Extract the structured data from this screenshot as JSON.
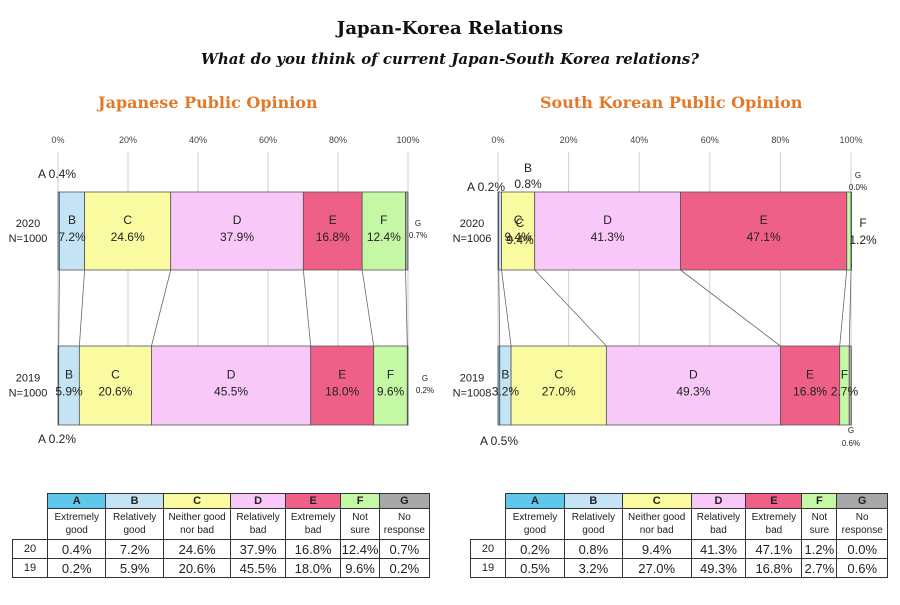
{
  "header": {
    "title": "Japan-Korea Relations",
    "subtitle": "What do you think of current Japan-South Korea relations?"
  },
  "colors": {
    "A": "#5ec8ec",
    "B": "#c4e4f6",
    "C": "#fafaa0",
    "D": "#f8c8f8",
    "E": "#ee6088",
    "F": "#c4f8a4",
    "G": "#a8a8a8"
  },
  "legend": {
    "codes": [
      "A",
      "B",
      "C",
      "D",
      "E",
      "F",
      "G"
    ],
    "descriptions": [
      "Extremely good",
      "Relatively good",
      "Neither good nor bad",
      "Relatively bad",
      "Extremely bad",
      "Not sure",
      "No response"
    ]
  },
  "chart_data": [
    {
      "type": "bar",
      "title": "Japanese Public Opinion",
      "xlim": [
        0,
        100
      ],
      "ticks": [
        "0%",
        "20%",
        "40%",
        "60%",
        "80%",
        "100%"
      ],
      "categories": [
        "A",
        "B",
        "C",
        "D",
        "E",
        "F",
        "G"
      ],
      "rows": [
        {
          "label": "2020",
          "n": "N=1000",
          "values": [
            0.4,
            7.2,
            24.6,
            37.9,
            16.8,
            12.4,
            0.7
          ],
          "labels": [
            "0.4%",
            "7.2%",
            "24.6%",
            "37.9%",
            "16.8%",
            "12.4%",
            "0.7%"
          ]
        },
        {
          "label": "2019",
          "n": "N=1000",
          "values": [
            0.2,
            5.9,
            20.6,
            45.5,
            18.0,
            9.6,
            0.2
          ],
          "labels": [
            "0.2%",
            "5.9%",
            "20.6%",
            "45.5%",
            "18.0%",
            "9.6%",
            "0.2%"
          ]
        }
      ],
      "table_years": [
        "20",
        "19"
      ]
    },
    {
      "type": "bar",
      "title": "South Korean Public Opinion",
      "xlim": [
        0,
        100
      ],
      "ticks": [
        "0%",
        "20%",
        "40%",
        "60%",
        "80%",
        "100%"
      ],
      "categories": [
        "A",
        "B",
        "C",
        "D",
        "E",
        "F",
        "G"
      ],
      "rows": [
        {
          "label": "2020",
          "n": "N=1006",
          "values": [
            0.2,
            0.8,
            9.4,
            41.3,
            47.1,
            1.2,
            0.0
          ],
          "labels": [
            "0.2%",
            "0.8%",
            "9.4%",
            "41.3%",
            "47.1%",
            "1.2%",
            "0.0%"
          ]
        },
        {
          "label": "2019",
          "n": "N=1008",
          "values": [
            0.5,
            3.2,
            27.0,
            49.3,
            16.8,
            2.7,
            0.6
          ],
          "labels": [
            "0.5%",
            "3.2%",
            "27.0%",
            "49.3%",
            "16.8%",
            "2.7%",
            "0.6%"
          ]
        }
      ],
      "table_years": [
        "20",
        "19"
      ]
    }
  ]
}
